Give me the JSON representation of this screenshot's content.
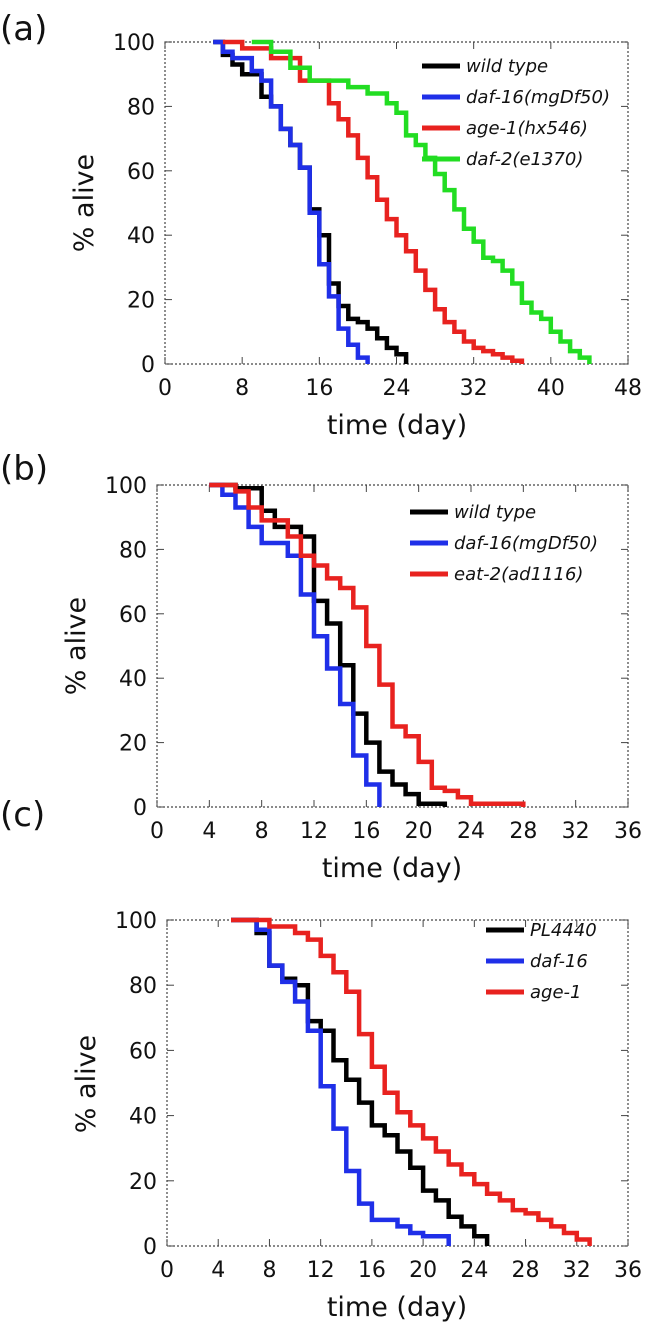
{
  "chart_data": [
    {
      "type": "line",
      "panel": "(a)",
      "xlabel": "time (day)",
      "ylabel": "% alive",
      "xlim": [
        0,
        48
      ],
      "ylim": [
        0,
        100
      ],
      "xticks": [
        0,
        8,
        16,
        24,
        32,
        40,
        48
      ],
      "yticks": [
        0,
        20,
        40,
        60,
        80,
        100
      ],
      "legend_position": "top-right",
      "series": [
        {
          "name": "wild type",
          "color": "#000000",
          "points": [
            [
              5,
              100
            ],
            [
              6,
              96
            ],
            [
              7,
              93
            ],
            [
              8,
              90
            ],
            [
              10,
              83
            ],
            [
              11,
              80
            ],
            [
              12,
              73
            ],
            [
              13,
              68
            ],
            [
              14,
              61
            ],
            [
              15,
              48
            ],
            [
              16,
              40
            ],
            [
              17,
              25
            ],
            [
              18,
              18
            ],
            [
              19,
              14
            ],
            [
              20,
              13
            ],
            [
              21,
              11
            ],
            [
              22,
              8
            ],
            [
              23,
              5
            ],
            [
              24,
              3
            ],
            [
              25,
              0
            ]
          ]
        },
        {
          "name": "daf-16(mgDf50)",
          "color": "#1f2fe8",
          "points": [
            [
              5,
              100
            ],
            [
              6,
              97
            ],
            [
              7,
              95
            ],
            [
              9,
              91
            ],
            [
              10,
              88
            ],
            [
              11,
              80
            ],
            [
              12,
              73
            ],
            [
              13,
              68
            ],
            [
              14,
              61
            ],
            [
              15,
              47
            ],
            [
              16,
              31
            ],
            [
              17,
              21
            ],
            [
              18,
              11
            ],
            [
              19,
              6
            ],
            [
              20,
              2
            ],
            [
              21,
              0
            ]
          ]
        },
        {
          "name": "age-1(hx546)",
          "color": "#e8221f",
          "points": [
            [
              6,
              100
            ],
            [
              8,
              98
            ],
            [
              11,
              95
            ],
            [
              14,
              88
            ],
            [
              17,
              81
            ],
            [
              18,
              76
            ],
            [
              19,
              71
            ],
            [
              20,
              64
            ],
            [
              21,
              58
            ],
            [
              22,
              51
            ],
            [
              23,
              45
            ],
            [
              24,
              40
            ],
            [
              25,
              35
            ],
            [
              26,
              29
            ],
            [
              27,
              23
            ],
            [
              28,
              17
            ],
            [
              29,
              13
            ],
            [
              30,
              10
            ],
            [
              31,
              7
            ],
            [
              32,
              5
            ],
            [
              33,
              4
            ],
            [
              34,
              3
            ],
            [
              35,
              2
            ],
            [
              36,
              1
            ],
            [
              37,
              0
            ]
          ]
        },
        {
          "name": "daf-2(e1370)",
          "color": "#22dd22",
          "points": [
            [
              9,
              100
            ],
            [
              11,
              97
            ],
            [
              13,
              92
            ],
            [
              15,
              88
            ],
            [
              19,
              86
            ],
            [
              21,
              84
            ],
            [
              23,
              81
            ],
            [
              24,
              78
            ],
            [
              25,
              71
            ],
            [
              26,
              68
            ],
            [
              27,
              64
            ],
            [
              28,
              59
            ],
            [
              29,
              54
            ],
            [
              30,
              48
            ],
            [
              31,
              42
            ],
            [
              32,
              38
            ],
            [
              33,
              33
            ],
            [
              34,
              32
            ],
            [
              35,
              29
            ],
            [
              36,
              25
            ],
            [
              37,
              19
            ],
            [
              38,
              16
            ],
            [
              39,
              14
            ],
            [
              40,
              10
            ],
            [
              41,
              7
            ],
            [
              42,
              4
            ],
            [
              43,
              2
            ],
            [
              44,
              0
            ]
          ]
        }
      ]
    },
    {
      "type": "line",
      "panel": "(b)",
      "xlabel": "time (day)",
      "ylabel": "% alive",
      "xlim": [
        0,
        36
      ],
      "ylim": [
        0,
        100
      ],
      "xticks": [
        0,
        4,
        8,
        12,
        16,
        20,
        24,
        28,
        32,
        36
      ],
      "yticks": [
        0,
        20,
        40,
        60,
        80,
        100
      ],
      "legend_position": "top-right",
      "series": [
        {
          "name": "wild type",
          "color": "#000000",
          "points": [
            [
              4,
              100
            ],
            [
              6,
              99
            ],
            [
              8,
              92
            ],
            [
              9,
              87
            ],
            [
              11,
              84
            ],
            [
              12,
              64
            ],
            [
              13,
              57
            ],
            [
              14,
              44
            ],
            [
              15,
              29
            ],
            [
              16,
              20
            ],
            [
              17,
              11
            ],
            [
              18,
              7
            ],
            [
              19,
              4
            ],
            [
              20,
              1
            ],
            [
              22,
              0
            ]
          ]
        },
        {
          "name": "daf-16(mgDf50)",
          "color": "#1f2fe8",
          "points": [
            [
              4,
              100
            ],
            [
              5,
              97
            ],
            [
              6,
              93
            ],
            [
              7,
              87
            ],
            [
              8,
              82
            ],
            [
              10,
              78
            ],
            [
              11,
              66
            ],
            [
              12,
              53
            ],
            [
              13,
              43
            ],
            [
              14,
              32
            ],
            [
              15,
              16
            ],
            [
              16,
              7
            ],
            [
              17,
              0
            ]
          ]
        },
        {
          "name": "eat-2(ad1116)",
          "color": "#e8221f",
          "points": [
            [
              4,
              100
            ],
            [
              6,
              98
            ],
            [
              7,
              93
            ],
            [
              8,
              89
            ],
            [
              10,
              84
            ],
            [
              11,
              78
            ],
            [
              12,
              75
            ],
            [
              13,
              71
            ],
            [
              14,
              68
            ],
            [
              15,
              62
            ],
            [
              16,
              50
            ],
            [
              17,
              38
            ],
            [
              18,
              25
            ],
            [
              19,
              22
            ],
            [
              20,
              14
            ],
            [
              21,
              6
            ],
            [
              22,
              5
            ],
            [
              23,
              3
            ],
            [
              24,
              1
            ],
            [
              28,
              0
            ]
          ]
        }
      ]
    },
    {
      "type": "line",
      "panel": "(c)",
      "xlabel": "time (day)",
      "ylabel": "% alive",
      "xlim": [
        0,
        36
      ],
      "ylim": [
        0,
        100
      ],
      "xticks": [
        0,
        4,
        8,
        12,
        16,
        20,
        24,
        28,
        32,
        36
      ],
      "yticks": [
        0,
        20,
        40,
        60,
        80,
        100
      ],
      "legend_position": "top-right",
      "series": [
        {
          "name": "PL4440",
          "color": "#000000",
          "points": [
            [
              5,
              100
            ],
            [
              7,
              96
            ],
            [
              8,
              86
            ],
            [
              9,
              82
            ],
            [
              10,
              80
            ],
            [
              11,
              69
            ],
            [
              12,
              66
            ],
            [
              13,
              57
            ],
            [
              14,
              51
            ],
            [
              15,
              44
            ],
            [
              16,
              37
            ],
            [
              17,
              34
            ],
            [
              18,
              29
            ],
            [
              19,
              24
            ],
            [
              20,
              17
            ],
            [
              21,
              14
            ],
            [
              22,
              9
            ],
            [
              23,
              6
            ],
            [
              24,
              3
            ],
            [
              25,
              0
            ]
          ]
        },
        {
          "name": "daf-16",
          "color": "#1f2fe8",
          "points": [
            [
              5,
              100
            ],
            [
              7,
              97
            ],
            [
              8,
              86
            ],
            [
              9,
              81
            ],
            [
              10,
              75
            ],
            [
              11,
              66
            ],
            [
              12,
              49
            ],
            [
              13,
              36
            ],
            [
              14,
              23
            ],
            [
              15,
              13
            ],
            [
              16,
              8
            ],
            [
              18,
              6
            ],
            [
              19,
              4
            ],
            [
              20,
              3
            ],
            [
              22,
              0
            ]
          ]
        },
        {
          "name": "age-1",
          "color": "#e8221f",
          "points": [
            [
              5,
              100
            ],
            [
              7,
              100
            ],
            [
              8,
              98
            ],
            [
              10,
              96
            ],
            [
              11,
              94
            ],
            [
              12,
              89
            ],
            [
              13,
              84
            ],
            [
              14,
              78
            ],
            [
              15,
              65
            ],
            [
              16,
              55
            ],
            [
              17,
              47
            ],
            [
              18,
              41
            ],
            [
              19,
              37
            ],
            [
              20,
              33
            ],
            [
              21,
              29
            ],
            [
              22,
              25
            ],
            [
              23,
              22
            ],
            [
              24,
              19
            ],
            [
              25,
              16
            ],
            [
              26,
              14
            ],
            [
              27,
              11
            ],
            [
              28,
              10
            ],
            [
              29,
              8
            ],
            [
              30,
              6
            ],
            [
              31,
              4
            ],
            [
              32,
              2
            ],
            [
              33,
              0
            ]
          ]
        }
      ]
    }
  ]
}
